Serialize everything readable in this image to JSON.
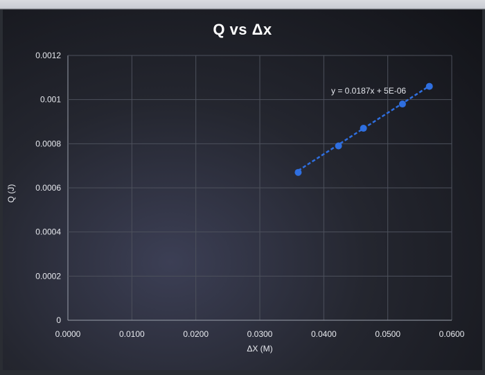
{
  "chart_data": {
    "type": "scatter",
    "title": "Q vs Δx",
    "xlabel": "ΔX (M)",
    "ylabel": "Q (J)",
    "xlim": [
      0,
      0.06
    ],
    "ylim": [
      0,
      0.0012
    ],
    "x_ticks": [
      "0.0000",
      "0.0100",
      "0.0200",
      "0.0300",
      "0.0400",
      "0.0500",
      "0.0600"
    ],
    "y_ticks": [
      "0",
      "0.0002",
      "0.0004",
      "0.0006",
      "0.0008",
      "0.001",
      "0.0012"
    ],
    "grid": true,
    "series": [
      {
        "x": [
          0.036,
          0.0423,
          0.0462,
          0.0523,
          0.0565
        ],
        "y": [
          0.00067,
          0.00079,
          0.00087,
          0.00098,
          0.00106
        ],
        "color": "#2f6fe0"
      }
    ],
    "trendline": {
      "equation": "y = 0.0187x + 5E-06",
      "slope": 0.0187,
      "intercept": 5e-06,
      "style": "dashed",
      "color": "#2f6fe0"
    }
  }
}
